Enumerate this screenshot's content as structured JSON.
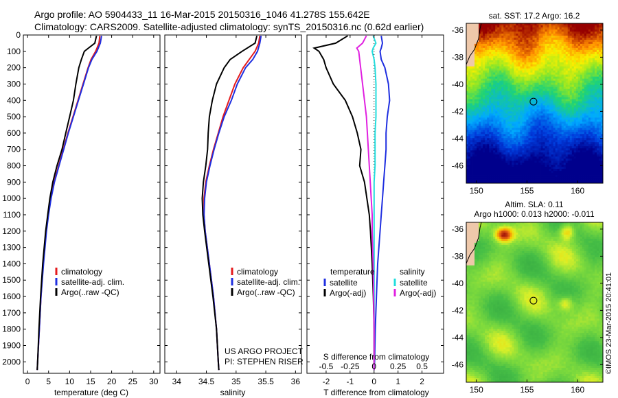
{
  "header": {
    "line1": "Argo profile: AO 5904433_11 16-Mar-2015 20150316_1046 41.278S 155.642E",
    "line2": "Climatology: CARS2009. Satellite-adjusted climatology: synTS_20150316.nc (0.62d earlier)"
  },
  "colors": {
    "climatology": "#e41a1c",
    "satellite": "#1f2fe0",
    "argo": "#000000",
    "sat_salinity_diff": "#22dddd",
    "argo_salinity_diff": "#e020e0"
  },
  "credit": {
    "line1": "US ARGO PROJECT",
    "line2": "PI: STEPHEN RISER"
  },
  "timestamp": "©IMOS 23-Mar-2015 20:41:01",
  "chart_data": [
    {
      "id": "temperature",
      "type": "line",
      "xlabel": "temperature (deg C)",
      "ylabel": "",
      "xlim": [
        -1,
        31.5
      ],
      "ylim": [
        2070,
        0
      ],
      "xticks": [
        0,
        5,
        10,
        15,
        20,
        25,
        30
      ],
      "yticks": [
        0,
        100,
        200,
        300,
        400,
        500,
        600,
        700,
        800,
        900,
        1000,
        1100,
        1200,
        1300,
        1400,
        1500,
        1600,
        1700,
        1800,
        1900,
        2000
      ],
      "legend": [
        "climatology",
        "satellite-adj. clim.",
        "Argo(..raw -QC)"
      ],
      "legend_position": "lower-middle",
      "depth": [
        5,
        50,
        100,
        150,
        200,
        300,
        400,
        500,
        600,
        700,
        800,
        900,
        1000,
        1100,
        1200,
        1400,
        1600,
        1800,
        2000,
        2050
      ],
      "series": [
        {
          "name": "climatology",
          "values": [
            17.2,
            17.0,
            16.2,
            15.1,
            14.4,
            13.2,
            12.0,
            10.8,
            9.6,
            8.5,
            7.4,
            6.3,
            5.5,
            4.9,
            4.4,
            3.7,
            3.2,
            2.8,
            2.4,
            2.3
          ]
        },
        {
          "name": "satellite-adj. clim.",
          "values": [
            17.6,
            17.3,
            16.5,
            15.3,
            14.5,
            13.3,
            12.1,
            10.9,
            9.7,
            8.6,
            7.5,
            6.4,
            5.6,
            5.0,
            4.5,
            3.8,
            3.2,
            2.8,
            2.4,
            2.3
          ]
        },
        {
          "name": "Argo(..raw -QC)",
          "values": [
            16.4,
            16.0,
            13.5,
            12.8,
            12.2,
            11.5,
            10.9,
            10.0,
            9.1,
            8.2,
            7.0,
            6.0,
            5.3,
            4.8,
            4.3,
            3.6,
            3.1,
            2.7,
            2.4,
            2.3
          ]
        }
      ]
    },
    {
      "id": "salinity",
      "type": "line",
      "xlabel": "salinity",
      "ylabel": "",
      "xlim": [
        33.8,
        36.1
      ],
      "ylim": [
        2070,
        0
      ],
      "xticks": [
        34,
        34.5,
        35,
        35.5,
        36
      ],
      "legend": [
        "climatology",
        "satellite-adj. clim.",
        "Argo(..raw -QC)"
      ],
      "legend_position": "lower-middle",
      "depth": [
        5,
        50,
        100,
        150,
        200,
        300,
        400,
        500,
        600,
        700,
        800,
        900,
        1000,
        1100,
        1200,
        1400,
        1600,
        1800,
        2000,
        2050
      ],
      "series": [
        {
          "name": "climatology",
          "values": [
            35.4,
            35.38,
            35.32,
            35.22,
            35.12,
            34.98,
            34.88,
            34.78,
            34.7,
            34.62,
            34.55,
            34.49,
            34.46,
            34.46,
            34.48,
            34.55,
            34.62,
            34.67,
            34.7,
            34.71
          ]
        },
        {
          "name": "satellite-adj. clim.",
          "values": [
            35.42,
            35.4,
            35.36,
            35.28,
            35.16,
            35.02,
            34.92,
            34.8,
            34.71,
            34.63,
            34.56,
            34.5,
            34.47,
            34.46,
            34.48,
            34.55,
            34.62,
            34.67,
            34.7,
            34.71
          ]
        },
        {
          "name": "Argo(..raw -QC)",
          "values": [
            35.35,
            35.32,
            35.1,
            34.9,
            34.8,
            34.67,
            34.6,
            34.55,
            34.53,
            34.52,
            34.49,
            34.45,
            34.43,
            34.44,
            34.47,
            34.54,
            34.61,
            34.67,
            34.7,
            34.71
          ]
        }
      ]
    },
    {
      "id": "difference",
      "type": "line",
      "xlabel": "T difference from climatology",
      "x2label": "S difference from climatology",
      "xlim": [
        -2.8,
        2.9
      ],
      "x2lim": [
        -0.7,
        0.725
      ],
      "ylim": [
        2070,
        0
      ],
      "xticks": [
        -2,
        -1,
        0,
        1,
        2
      ],
      "x2ticks": [
        -0.5,
        -0.25,
        0,
        0.25,
        0.5
      ],
      "x2ticklabels": [
        "-0.5",
        "-0.25",
        "0",
        "0.25",
        "0.5"
      ],
      "legend_headers": [
        "temperature",
        "salinity"
      ],
      "legend": [
        "satellite",
        "Argo(-adj)",
        "satellite",
        "Argo(-adj)"
      ],
      "legend_position": "lower-middle",
      "depth": [
        5,
        50,
        80,
        100,
        150,
        200,
        300,
        400,
        500,
        600,
        700,
        800,
        900,
        1000,
        1100,
        1200,
        1400,
        1600,
        1800,
        2000,
        2050
      ],
      "series": [
        {
          "name": "temperature satellite",
          "values": [
            0.3,
            0.35,
            0.3,
            0.25,
            0.3,
            0.45,
            0.6,
            0.65,
            0.55,
            0.5,
            0.5,
            0.45,
            0.4,
            0.35,
            0.3,
            0.25,
            0.15,
            0.1,
            0.05,
            0.02,
            0.0
          ]
        },
        {
          "name": "temperature Argo(-adj)",
          "values": [
            -1.1,
            -1.6,
            -2.5,
            -2.3,
            -2.1,
            -2.0,
            -1.7,
            -1.2,
            -0.9,
            -0.7,
            -0.55,
            -0.6,
            -0.4,
            -0.3,
            -0.2,
            -0.15,
            -0.08,
            -0.03,
            0.0,
            0.0,
            0.0
          ]
        },
        {
          "name": "salinity satellite",
          "values": [
            -0.01,
            0.02,
            -0.01,
            -0.02,
            0.0,
            0.01,
            0.02,
            0.02,
            0.02,
            0.01,
            0.01,
            0.01,
            0.0,
            0.0,
            0.0,
            0.0,
            0.0,
            0.0,
            0.0,
            0.0,
            0.0
          ]
        },
        {
          "name": "salinity Argo(-adj)",
          "values": [
            -0.08,
            -0.12,
            -0.18,
            -0.16,
            -0.15,
            -0.14,
            -0.12,
            -0.1,
            -0.08,
            -0.07,
            -0.06,
            -0.05,
            -0.04,
            -0.03,
            -0.02,
            -0.02,
            -0.01,
            -0.005,
            0.0,
            0.0,
            0.0
          ]
        }
      ]
    },
    {
      "id": "sst_map",
      "type": "heatmap",
      "title": "sat. SST: 17.2  Argo: 16.2",
      "xlim": [
        149,
        162.5
      ],
      "ylim": [
        -47.3,
        -35.5
      ],
      "xticks": [
        150,
        155,
        160
      ],
      "yticks": [
        -36,
        -38,
        -40,
        -42,
        -44,
        -46
      ],
      "marker": {
        "lon": 155.642,
        "lat": -41.278
      }
    },
    {
      "id": "sla_map",
      "type": "heatmap",
      "title": "Altim. SLA: 0.11",
      "subtitle": "Argo h1000: 0.013  h2000: -0.011",
      "xlim": [
        149,
        162.5
      ],
      "ylim": [
        -47.3,
        -35.5
      ],
      "xticks": [
        150,
        155,
        160
      ],
      "yticks": [
        -36,
        -38,
        -40,
        -42,
        -44,
        -46
      ],
      "marker": {
        "lon": 155.642,
        "lat": -41.278
      }
    }
  ]
}
